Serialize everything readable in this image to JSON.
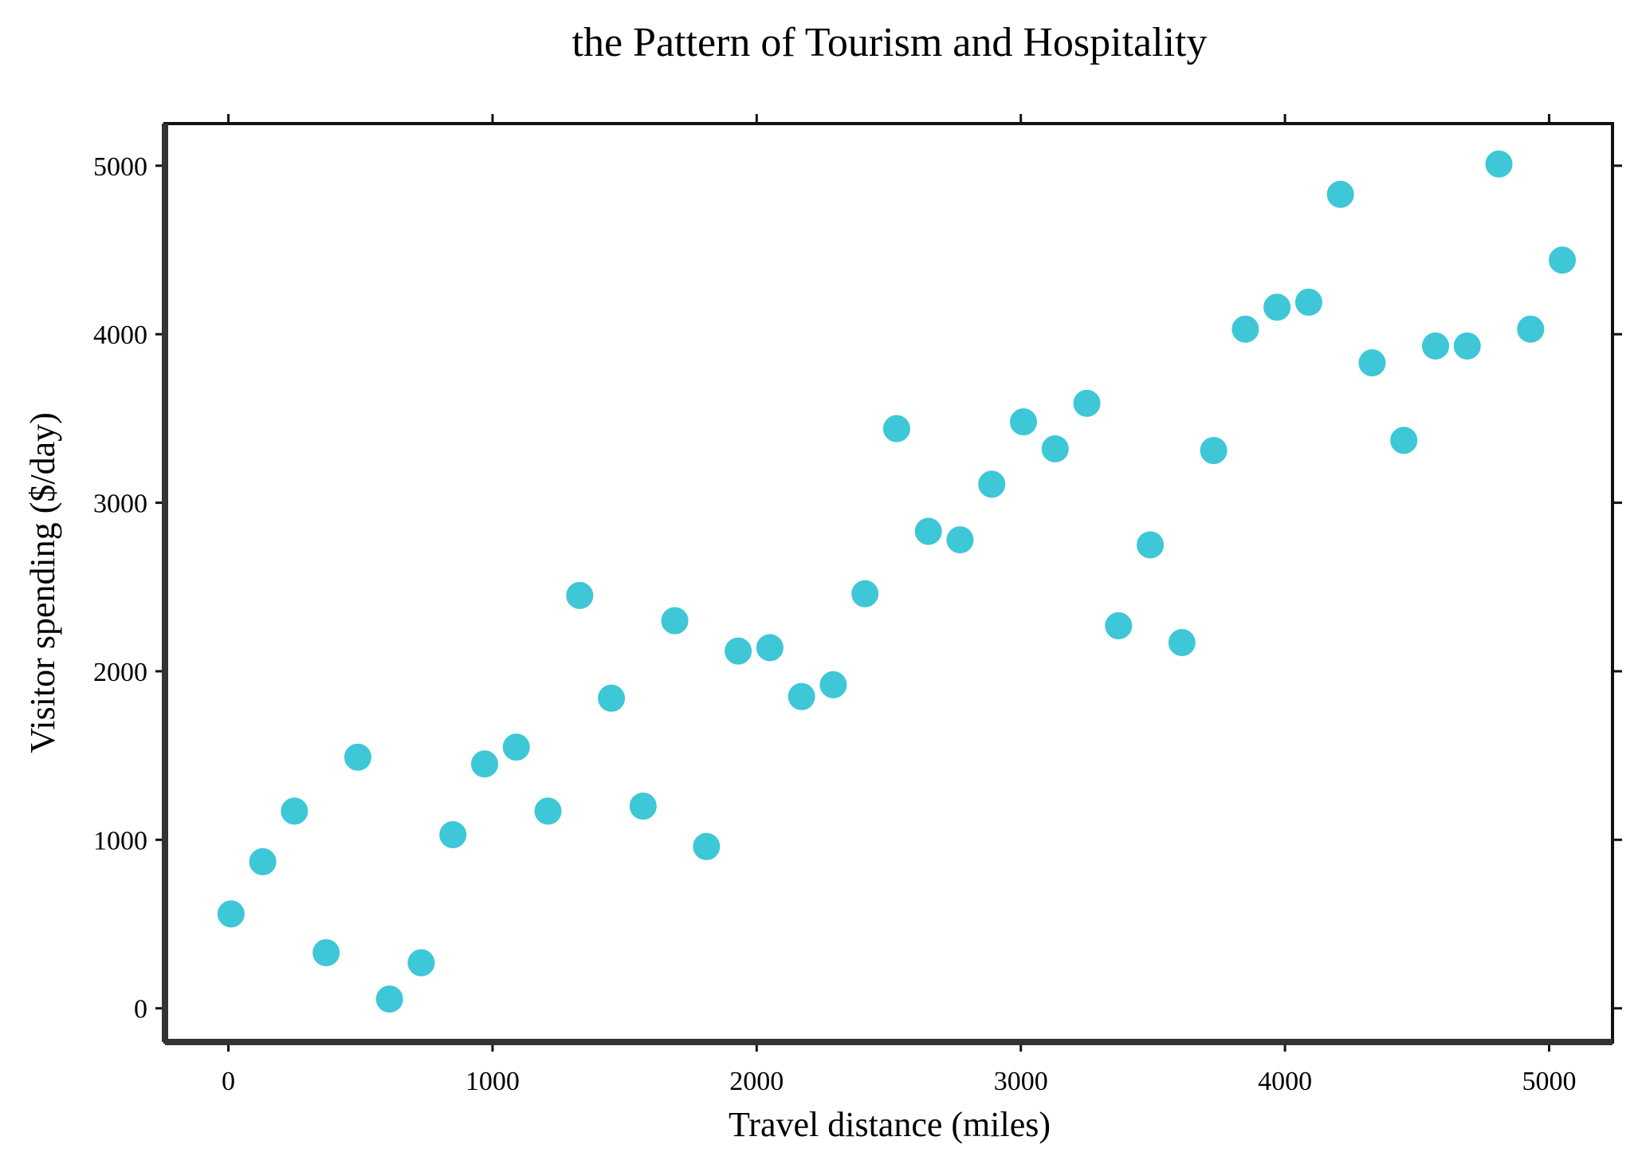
{
  "chart_data": {
    "type": "scatter",
    "title": "the Pattern of Tourism and Hospitality",
    "xlabel": "Travel distance (miles)",
    "ylabel": "Visitor spending ($/day)",
    "xlim": [
      -240,
      5240
    ],
    "ylim": [
      -200,
      5250
    ],
    "x_ticks": [
      0,
      1000,
      2000,
      3000,
      4000,
      5000
    ],
    "y_ticks": [
      0,
      1000,
      2000,
      3000,
      4000,
      5000
    ],
    "x_tick_labels": [
      "0",
      "1000",
      "2000",
      "3000",
      "4000",
      "5000"
    ],
    "y_tick_labels": [
      "0",
      "1000",
      "2000",
      "3000",
      "4000",
      "5000"
    ],
    "grid": false,
    "legend": false,
    "color": "#3ec7d6",
    "series": [
      {
        "x": [
          10,
          130,
          250,
          370,
          490,
          610,
          730,
          850,
          970,
          1090,
          1210,
          1330,
          1450,
          1570,
          1690,
          1810,
          1930,
          2050,
          2170,
          2290,
          2410,
          2530,
          2650,
          2770,
          2890,
          3010,
          3130,
          3250,
          3370,
          3490,
          3610,
          3730,
          3850,
          3970,
          4090,
          4210,
          4330,
          4450,
          4570,
          4690,
          4810,
          4930,
          5050
        ],
        "y": [
          560,
          870,
          1170,
          330,
          1490,
          55,
          270,
          1030,
          1450,
          1550,
          1170,
          2450,
          1840,
          1200,
          2300,
          960,
          2120,
          2140,
          1850,
          1920,
          2460,
          3440,
          2830,
          2780,
          3110,
          3480,
          3320,
          3590,
          2270,
          2750,
          2170,
          3310,
          4030,
          4160,
          4190,
          4830,
          3830,
          3370,
          3930,
          3930,
          5010,
          4030,
          4440
        ]
      }
    ]
  }
}
